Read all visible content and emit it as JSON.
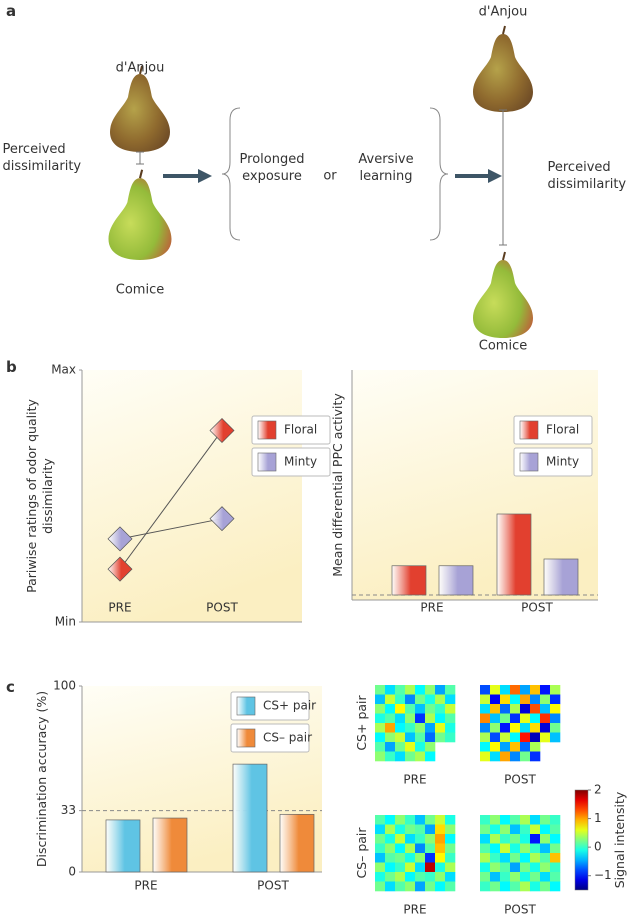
{
  "panel_a": {
    "label": "a",
    "left_top_pear": "d'Anjou",
    "left_bottom_pear": "Comice",
    "left_label": "Perceived dissimilarity",
    "exposure": "Prolonged exposure",
    "or": "or",
    "learning": "Aversive learning",
    "right_top_pear": "d'Anjou",
    "right_bottom_pear": "Comice",
    "right_label": "Perceived dissimilarity"
  },
  "panel_b": {
    "label": "b"
  },
  "panel_c": {
    "label": "c"
  },
  "chart_data": [
    {
      "type": "line",
      "ylabel": "Pariwise ratings of odor quality dissimilarity",
      "categories": [
        "PRE",
        "POST"
      ],
      "series": [
        {
          "name": "Floral",
          "color": "#e2402f",
          "values": [
            0.21,
            0.76
          ]
        },
        {
          "name": "Minty",
          "color": "#a7a2d6",
          "values": [
            0.33,
            0.41
          ]
        }
      ],
      "ylim": [
        0,
        1
      ],
      "yticks": [
        {
          "value": 1,
          "label": "Max"
        },
        {
          "value": 0,
          "label": "Min"
        }
      ],
      "marker": "diamond",
      "line_color": "#555555",
      "legend": "top right"
    },
    {
      "type": "bar",
      "ylabel": "Mean differential PPC activity",
      "categories": [
        "PRE",
        "POST"
      ],
      "series": [
        {
          "name": "Floral",
          "color": "#e2402f",
          "values": [
            0.13,
            0.36
          ]
        },
        {
          "name": "Minty",
          "color": "#a7a2d6",
          "values": [
            0.13,
            0.16
          ]
        }
      ],
      "ylim": [
        0,
        1
      ],
      "baseline": "dashed",
      "legend": "top right"
    },
    {
      "type": "bar",
      "ylabel": "Discrimination accuracy (%)",
      "categories": [
        "PRE",
        "POST"
      ],
      "series": [
        {
          "name": "CS+ pair",
          "color": "#5fc4e4",
          "values": [
            28,
            58
          ]
        },
        {
          "name": "CS– pair",
          "color": "#ef8a3a",
          "values": [
            29,
            31
          ]
        }
      ],
      "ylim": [
        0,
        100
      ],
      "yticks": [
        0,
        33,
        100
      ],
      "reference_line": 33,
      "legend": "top right"
    },
    {
      "type": "heatmap",
      "rows": [
        "CS+ pair",
        "CS– pair"
      ],
      "columns": [
        "PRE",
        "POST"
      ],
      "matrices": [
        [
          [
            [
              0.2,
              -0.3,
              0.1,
              0.4,
              -0.2,
              0.3,
              -0.5,
              0.1
            ],
            [
              -0.4,
              0.5,
              0.0,
              -0.6,
              0.2,
              -0.1,
              0.4,
              -0.3
            ],
            [
              0.3,
              -0.2,
              0.7,
              0.1,
              -0.4,
              0.2,
              0.0,
              0.5
            ],
            [
              -0.1,
              0.1,
              -0.3,
              0.3,
              -0.9,
              0.4,
              -0.2,
              0.1
            ],
            [
              0.4,
              1.0,
              -0.2,
              0.0,
              0.3,
              -0.5,
              0.6,
              -0.1
            ],
            [
              -0.2,
              0.3,
              0.5,
              -0.4,
              0.1,
              -0.7,
              0.2,
              0.0
            ],
            [
              0.1,
              -0.5,
              0.2,
              0.6,
              -0.1,
              0.3,
              null,
              null
            ],
            [
              0.3,
              0.0,
              -0.3,
              0.2,
              0.4,
              -0.2,
              null,
              null
            ]
          ],
          [
            [
              -0.8,
              0.6,
              -0.3,
              1.2,
              -0.5,
              0.9,
              -1.0,
              0.4
            ],
            [
              0.5,
              -1.1,
              0.8,
              -0.2,
              1.0,
              -0.6,
              0.3,
              -0.9
            ],
            [
              -0.3,
              0.9,
              -0.7,
              0.4,
              -1.2,
              1.3,
              -0.4,
              0.7
            ],
            [
              1.1,
              -0.4,
              0.2,
              -0.9,
              0.6,
              -0.2,
              1.4,
              -0.6
            ],
            [
              -0.6,
              0.3,
              -1.0,
              0.7,
              -0.3,
              0.8,
              -1.2,
              0.2
            ],
            [
              0.4,
              -0.8,
              0.5,
              -0.2,
              1.5,
              -1.3,
              0.6,
              -0.4
            ],
            [
              -0.2,
              0.7,
              -0.5,
              0.9,
              -0.7,
              0.4,
              null,
              null
            ],
            [
              0.6,
              -0.3,
              1.0,
              -0.6,
              0.2,
              -0.9,
              null,
              null
            ]
          ]
        ],
        [
          [
            [
              0.1,
              -0.2,
              0.3,
              0.0,
              -0.4,
              0.2,
              0.5,
              -0.1
            ],
            [
              -0.3,
              0.4,
              -0.1,
              0.2,
              0.1,
              -0.5,
              0.8,
              0.3
            ],
            [
              0.2,
              -0.1,
              0.5,
              -0.3,
              0.0,
              0.3,
              1.0,
              -0.2
            ],
            [
              0.0,
              0.3,
              -0.2,
              0.4,
              -0.6,
              0.1,
              0.9,
              0.2
            ],
            [
              -0.4,
              0.1,
              0.2,
              -0.1,
              0.3,
              -0.9,
              0.7,
              0.0
            ],
            [
              0.3,
              -0.2,
              0.0,
              0.5,
              -0.3,
              1.8,
              -0.1,
              0.4
            ],
            [
              -0.1,
              0.2,
              0.4,
              -0.2,
              0.1,
              0.0,
              0.3,
              -0.3
            ],
            [
              0.2,
              -0.3,
              0.1,
              0.3,
              -0.5,
              0.2,
              -0.2,
              0.1
            ]
          ],
          [
            [
              0.0,
              0.3,
              -0.2,
              0.1,
              0.4,
              -0.3,
              0.2,
              0.0
            ],
            [
              0.2,
              -0.1,
              0.3,
              -0.4,
              0.0,
              0.5,
              -0.2,
              0.1
            ],
            [
              -0.3,
              0.4,
              0.0,
              0.2,
              -0.1,
              -1.0,
              0.3,
              -0.2
            ],
            [
              0.1,
              -0.2,
              0.5,
              -0.1,
              0.3,
              0.0,
              -0.4,
              0.2
            ],
            [
              0.4,
              0.0,
              -0.3,
              0.2,
              -0.2,
              0.4,
              0.1,
              0.9
            ],
            [
              -0.1,
              0.3,
              0.1,
              -0.5,
              0.2,
              -0.1,
              0.3,
              0.0
            ],
            [
              0.2,
              -0.4,
              0.0,
              0.3,
              -0.1,
              0.2,
              -0.3,
              0.1
            ],
            [
              0.0,
              0.2,
              -0.2,
              0.1,
              0.4,
              -0.1,
              0.2,
              -0.2
            ]
          ]
        ]
      ],
      "colorbar": {
        "label": "Signal intensity",
        "lim": [
          -1.5,
          2
        ],
        "ticks": [
          2,
          1,
          0,
          {
            "value": -1,
            "label": "−1"
          }
        ],
        "colormap": "jet"
      }
    }
  ]
}
